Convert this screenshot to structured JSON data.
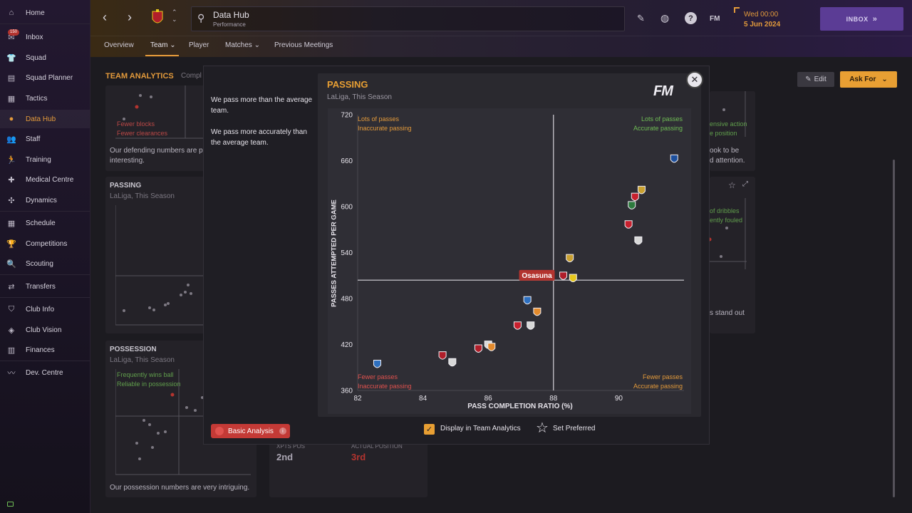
{
  "sidebar": {
    "items": [
      {
        "label": "Home",
        "icon": "home-icon"
      },
      {
        "label": "Inbox",
        "icon": "inbox-icon",
        "badge": "150"
      },
      {
        "label": "Squad",
        "icon": "shirt-icon"
      },
      {
        "label": "Squad Planner",
        "icon": "clipboard-icon"
      },
      {
        "label": "Tactics",
        "icon": "tactics-board-icon"
      },
      {
        "label": "Data Hub",
        "icon": "data-hub-icon",
        "active": true
      },
      {
        "label": "Staff",
        "icon": "staff-icon"
      },
      {
        "label": "Training",
        "icon": "training-icon"
      },
      {
        "label": "Medical Centre",
        "icon": "medical-icon"
      },
      {
        "label": "Dynamics",
        "icon": "dynamics-icon"
      },
      {
        "label": "Schedule",
        "icon": "calendar-icon"
      },
      {
        "label": "Competitions",
        "icon": "trophy-icon"
      },
      {
        "label": "Scouting",
        "icon": "scouting-icon"
      },
      {
        "label": "Transfers",
        "icon": "transfers-icon"
      },
      {
        "label": "Club Info",
        "icon": "shield-icon"
      },
      {
        "label": "Club Vision",
        "icon": "vision-icon"
      },
      {
        "label": "Finances",
        "icon": "finances-icon"
      },
      {
        "label": "Dev. Centre",
        "icon": "dev-centre-icon"
      }
    ]
  },
  "header": {
    "title": "Data Hub",
    "subtitle": "Performance",
    "date_line1": "Wed 00:00",
    "date_line2": "5 Jun 2024",
    "inbox_label": "INBOX",
    "fm_label": "FM"
  },
  "tabs": [
    {
      "label": "Overview"
    },
    {
      "label": "Team",
      "active": true
    },
    {
      "label": "Player"
    },
    {
      "label": "Matches"
    },
    {
      "label": "Previous Meetings"
    }
  ],
  "background": {
    "section_title": "TEAM ANALYTICS",
    "section_title_cut": "Compl",
    "edit_label": "Edit",
    "ask_for_label": "Ask For",
    "defending_text": "Our defending numbers are p",
    "defending_text2": "interesting.",
    "defending_q1": "Fewer blocks",
    "defending_q2": "Fewer clearances",
    "passing_title": "PASSING",
    "passing_sub": "LaLiga, This Season",
    "possession_title": "POSSESSION",
    "possession_sub": "LaLiga, This Season",
    "possession_q1": "Frequently wins ball",
    "possession_q2": "Reliable in possession",
    "possession_text": "Our possession numbers are very intriguing.",
    "xpts_label": "XPTS POS",
    "xpts_value": "2nd",
    "actual_label": "ACTUAL POSITION",
    "actual_value": "3rd",
    "right_q1": "ensive action",
    "right_q2": "e position",
    "right_text1": "ook to be",
    "right_text2": "d attention.",
    "right2_q1": "of dribbles",
    "right2_q2": "ently fouled",
    "right2_text": "s stand out"
  },
  "modal": {
    "insight1": "We pass more than the average team.",
    "insight2": "We pass more accurately than the average team.",
    "basic_analysis_label": "Basic Analysis",
    "display_label": "Display in Team Analytics",
    "set_preferred_label": "Set Preferred",
    "logo_label": "FM",
    "highlight_label": "Osasuna"
  },
  "chart_data": {
    "type": "scatter",
    "title": "PASSING",
    "subtitle": "LaLiga, This Season",
    "xlabel": "PASS COMPLETION RATIO (%)",
    "ylabel": "PASSES ATTEMPTED PER GAME",
    "xlim": [
      82,
      92
    ],
    "ylim": [
      360,
      720
    ],
    "xticks": [
      "82",
      "84",
      "86",
      "88",
      "90"
    ],
    "yticks": [
      "720",
      "660",
      "600",
      "540",
      "480",
      "420",
      "360"
    ],
    "avg_x": 88,
    "avg_y": 504,
    "quadrants": {
      "top_left": [
        "Lots of passes",
        "Inaccurate passing"
      ],
      "top_right": [
        "Lots of passes",
        "Accurate passing"
      ],
      "bottom_left": [
        "Fewer passes",
        "Inaccurate passing"
      ],
      "bottom_right": [
        "Fewer passes",
        "Accurate passing"
      ]
    },
    "points": [
      {
        "x": 91.7,
        "y": 662,
        "color": "#1d4f9c"
      },
      {
        "x": 90.7,
        "y": 621,
        "color": "#c9a030"
      },
      {
        "x": 90.5,
        "y": 612,
        "color": "#c8202e"
      },
      {
        "x": 90.4,
        "y": 601,
        "color": "#2d7a3e"
      },
      {
        "x": 90.3,
        "y": 576,
        "color": "#c8202e"
      },
      {
        "x": 90.6,
        "y": 555,
        "color": "#d8d8d8"
      },
      {
        "x": 88.5,
        "y": 532,
        "color": "#c9a030"
      },
      {
        "x": 88.3,
        "y": 509,
        "color": "#b01e2a",
        "highlight": true
      },
      {
        "x": 88.6,
        "y": 506,
        "color": "#e7c81c"
      },
      {
        "x": 87.2,
        "y": 477,
        "color": "#2d6fbf"
      },
      {
        "x": 87.5,
        "y": 462,
        "color": "#e38a2c"
      },
      {
        "x": 86.9,
        "y": 444,
        "color": "#c8202e"
      },
      {
        "x": 87.3,
        "y": 444,
        "color": "#d8d8d8"
      },
      {
        "x": 86.0,
        "y": 419,
        "color": "#d8d8d8"
      },
      {
        "x": 86.1,
        "y": 416,
        "color": "#e38a2c"
      },
      {
        "x": 85.7,
        "y": 414,
        "color": "#b01e2a"
      },
      {
        "x": 84.6,
        "y": 405,
        "color": "#b01e2a"
      },
      {
        "x": 84.9,
        "y": 396,
        "color": "#d8d8d8"
      },
      {
        "x": 82.6,
        "y": 394,
        "color": "#2d6fbf"
      }
    ]
  }
}
